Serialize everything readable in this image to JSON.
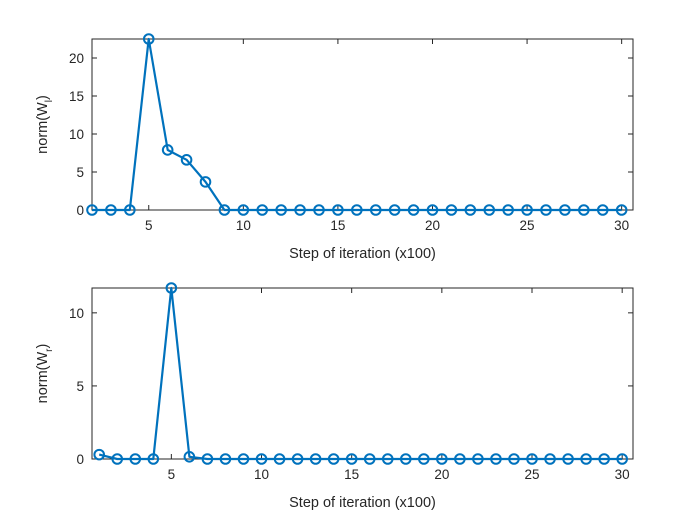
{
  "figure": {
    "background": "#ffffff",
    "line_color": "#0072BD",
    "axis_color": "#262626"
  },
  "chart_data": [
    {
      "type": "line",
      "marker": "circle",
      "title": "",
      "xlabel": "Step of iteration (x100)",
      "ylabel": "norm(W_l)",
      "ylabel_main": "norm(W",
      "ylabel_sub": "l",
      "ylabel_close": ")",
      "xlim": [
        2,
        30.6
      ],
      "ylim": [
        0,
        22.5
      ],
      "xticks": [
        5,
        10,
        15,
        20,
        25,
        30
      ],
      "yticks": [
        0,
        5,
        10,
        15,
        20
      ],
      "grid": false,
      "legend": null,
      "x": [
        2,
        3,
        4,
        5,
        6,
        7,
        8,
        9,
        10,
        11,
        12,
        13,
        14,
        15,
        16,
        17,
        18,
        19,
        20,
        21,
        22,
        23,
        24,
        25,
        26,
        27,
        28,
        29,
        30
      ],
      "values": [
        0,
        0,
        0,
        22.5,
        7.9,
        6.6,
        3.7,
        0,
        0,
        0,
        0,
        0,
        0,
        0,
        0,
        0,
        0,
        0,
        0,
        0,
        0,
        0,
        0,
        0,
        0,
        0,
        0,
        0,
        0
      ]
    },
    {
      "type": "line",
      "marker": "circle",
      "title": "",
      "xlabel": "Step of iteration (x100)",
      "ylabel": "norm(W_r)",
      "ylabel_main": "norm(W",
      "ylabel_sub": "r",
      "ylabel_close": ")",
      "xlim": [
        0.6,
        30.6
      ],
      "ylim": [
        0,
        11.7
      ],
      "xticks": [
        5,
        10,
        15,
        20,
        25,
        30
      ],
      "yticks": [
        0,
        5,
        10
      ],
      "grid": false,
      "legend": null,
      "x": [
        1,
        2,
        3,
        4,
        5,
        6,
        7,
        8,
        9,
        10,
        11,
        12,
        13,
        14,
        15,
        16,
        17,
        18,
        19,
        20,
        21,
        22,
        23,
        24,
        25,
        26,
        27,
        28,
        29,
        30
      ],
      "values": [
        0.3,
        0,
        0,
        0,
        11.7,
        0.15,
        0,
        0,
        0,
        0,
        0,
        0,
        0,
        0,
        0,
        0,
        0,
        0,
        0,
        0,
        0,
        0,
        0,
        0,
        0,
        0,
        0,
        0,
        0,
        0
      ]
    }
  ]
}
